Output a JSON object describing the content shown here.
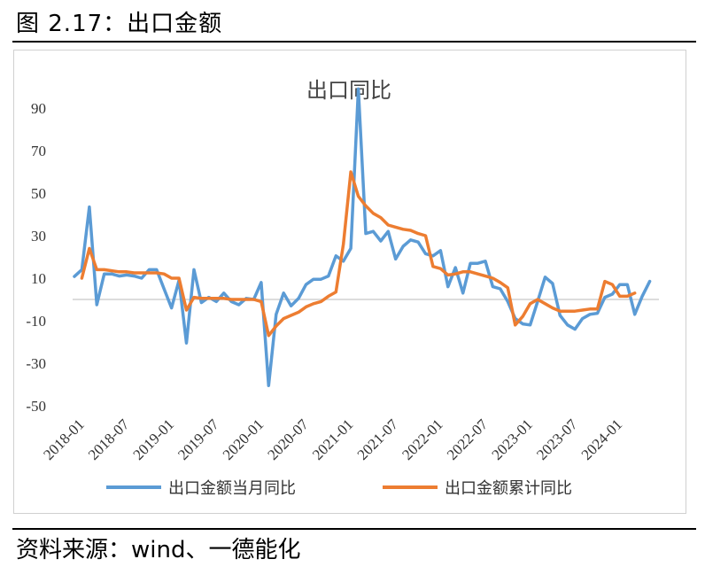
{
  "figure": {
    "title": "图 2.17：出口金额",
    "source": "资料来源：wind、一德能化"
  },
  "chart_data": {
    "type": "line",
    "title": "出口同比",
    "ylim": [
      -50,
      100
    ],
    "yticks": [
      -50,
      -30,
      -10,
      10,
      30,
      50,
      70,
      90
    ],
    "xlabels": [
      "2018-01",
      "2018-07",
      "2019-01",
      "2019-07",
      "2020-01",
      "2020-07",
      "2021-01",
      "2021-07",
      "2022-01",
      "2022-07",
      "2023-01",
      "2023-07",
      "2024-01"
    ],
    "grid": false,
    "legend_position": "bottom",
    "colors": {
      "monthly": "#5B9BD5",
      "cumulative": "#ED7D31"
    },
    "series": [
      {
        "name": "出口金额当月同比",
        "x_start": "2018-01",
        "values": [
          10.8,
          14,
          43.5,
          -2.5,
          12,
          12,
          11,
          11.5,
          11,
          10,
          14,
          14,
          5,
          -4,
          9,
          -20.5,
          14,
          -1.5,
          1,
          -1,
          3,
          -1,
          -2.5,
          0.5,
          0,
          8,
          -40.5,
          -7,
          3,
          -3,
          0.5,
          7,
          9.5,
          9.5,
          11,
          20.5,
          18,
          24,
          99,
          31,
          32,
          27.5,
          32,
          19,
          25,
          28,
          27,
          21.5,
          20.5,
          23,
          6,
          15,
          3,
          17,
          17,
          18,
          6,
          5,
          -1,
          -9,
          -11.5,
          -12,
          -1,
          10.5,
          7.5,
          -7.5,
          -12,
          -14,
          -9,
          -7,
          -6.5,
          1,
          2.5,
          7,
          7,
          -7,
          1.5,
          8.5
        ]
      },
      {
        "name": "出口金额累计同比",
        "x_start": "2018-02",
        "values": [
          10,
          24,
          14,
          14,
          13.5,
          13,
          13,
          12.5,
          12.5,
          12.5,
          12.5,
          12,
          10,
          10,
          -5,
          1,
          0.5,
          0.5,
          0.5,
          0.5,
          0,
          0,
          0,
          0,
          -1,
          -17,
          -12.5,
          -9,
          -7.5,
          -6,
          -3.5,
          -2,
          -1,
          1.5,
          3.5,
          26,
          60,
          48.5,
          44,
          40.5,
          38.5,
          35,
          34,
          33,
          32.5,
          31,
          30,
          15.5,
          14.5,
          11.5,
          12,
          13,
          13,
          12,
          11,
          10,
          8,
          5.5,
          -12,
          -8,
          -2,
          0,
          -2,
          -4,
          -5.5,
          -5.5,
          -5.5,
          -5,
          -4.5,
          -4.5,
          8.5,
          7,
          1.5,
          1.5,
          3
        ]
      }
    ]
  }
}
